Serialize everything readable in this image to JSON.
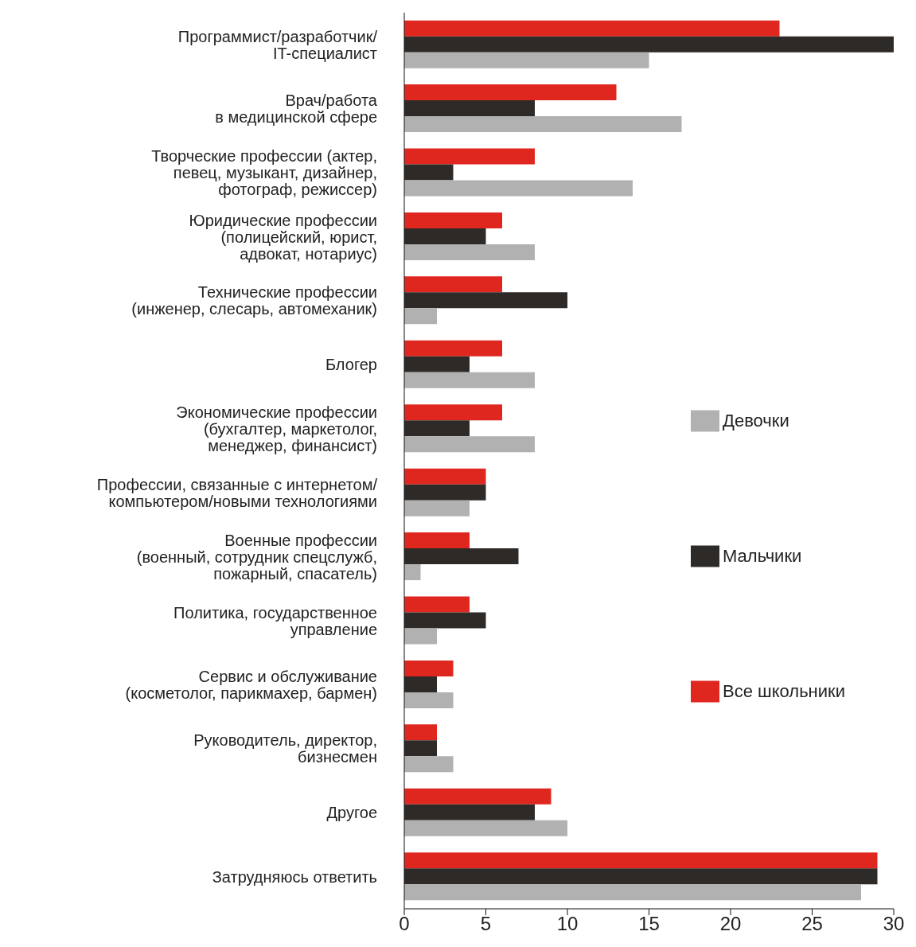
{
  "chart_data": {
    "type": "bar",
    "orientation": "horizontal",
    "categories": [
      "Программист/разработчик/\nIT-специалист",
      "Врач/работа\nв медицинской сфере",
      "Творческие профессии (актер,\nпевец, музыкант, дизайнер,\nфотограф, режиссер)",
      "Юридические профессии\n(полицейский, юрист,\nадвокат, нотариус)",
      "Технические профессии\n(инженер, слесарь, автомеханик)",
      "Блогер",
      "Экономические профессии\n(бухгалтер, маркетолог,\nменеджер, финансист)",
      "Профессии, связанные с интернетом/\nкомпьютером/новыми технологиями",
      "Военные профессии\n(военный, сотрудник спецслужб,\nпожарный, спасатель)",
      "Политика, государственное\nуправление",
      "Сервис и обслуживание\n(косметолог, парикмахер, бармен)",
      "Руководитель, директор,\nбизнесмен",
      "Другое",
      "Затрудняюсь ответить"
    ],
    "series": [
      {
        "name": "Все школьники",
        "color": "#e0271f",
        "values": [
          23,
          13,
          8,
          6,
          6,
          6,
          6,
          5,
          4,
          4,
          3,
          2,
          9,
          29
        ]
      },
      {
        "name": "Мальчики",
        "color": "#2e2a27",
        "values": [
          30,
          8,
          3,
          5,
          10,
          4,
          4,
          5,
          7,
          5,
          2,
          2,
          8,
          29
        ]
      },
      {
        "name": "Девочки",
        "color": "#b1b1b1",
        "values": [
          15,
          17,
          14,
          8,
          2,
          8,
          8,
          4,
          1,
          2,
          3,
          3,
          10,
          28
        ]
      }
    ],
    "xlim": [
      0,
      30
    ],
    "xticks": [
      0,
      5,
      10,
      15,
      20,
      25,
      30
    ],
    "grid": false,
    "legend": "right"
  }
}
